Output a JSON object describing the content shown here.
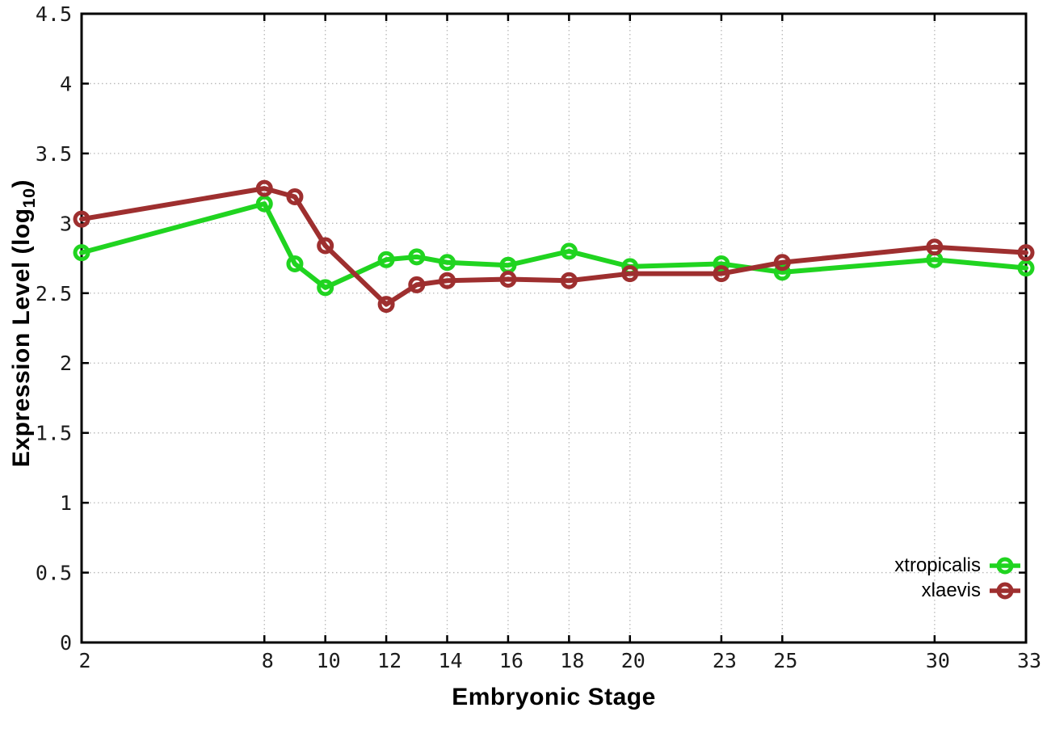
{
  "chart_data": {
    "type": "line",
    "title": "",
    "xlabel": "Embryonic Stage",
    "ylabel": {
      "prefix": "Expression Level (log",
      "subscript": "10",
      "suffix": ")"
    },
    "x": [
      2,
      8,
      9,
      10,
      12,
      13,
      14,
      16,
      18,
      20,
      23,
      25,
      30,
      33
    ],
    "x_tick_labels": [
      "2",
      "8",
      "10",
      "12",
      "14",
      "16",
      "18",
      "20",
      "23",
      "25",
      "30",
      "33"
    ],
    "y_tick_labels": [
      "0",
      "0.5",
      "1",
      "1.5",
      "2",
      "2.5",
      "3",
      "3.5",
      "4",
      "4.5"
    ],
    "xlim": [
      2,
      33
    ],
    "ylim": [
      0,
      4.5
    ],
    "grid": true,
    "legend_position": "bottom-right",
    "series": [
      {
        "name": "xtropicalis",
        "color": "#20d420",
        "marker": "open-circle",
        "values": [
          2.79,
          3.14,
          2.71,
          2.54,
          2.74,
          2.76,
          2.72,
          2.7,
          2.8,
          2.69,
          2.71,
          2.65,
          2.74,
          2.68
        ]
      },
      {
        "name": "xlaevis",
        "color": "#9e2f2f",
        "marker": "open-circle",
        "values": [
          3.03,
          3.25,
          3.19,
          2.84,
          2.42,
          2.56,
          2.59,
          2.6,
          2.59,
          2.64,
          2.64,
          2.72,
          2.83,
          2.79
        ]
      }
    ]
  }
}
